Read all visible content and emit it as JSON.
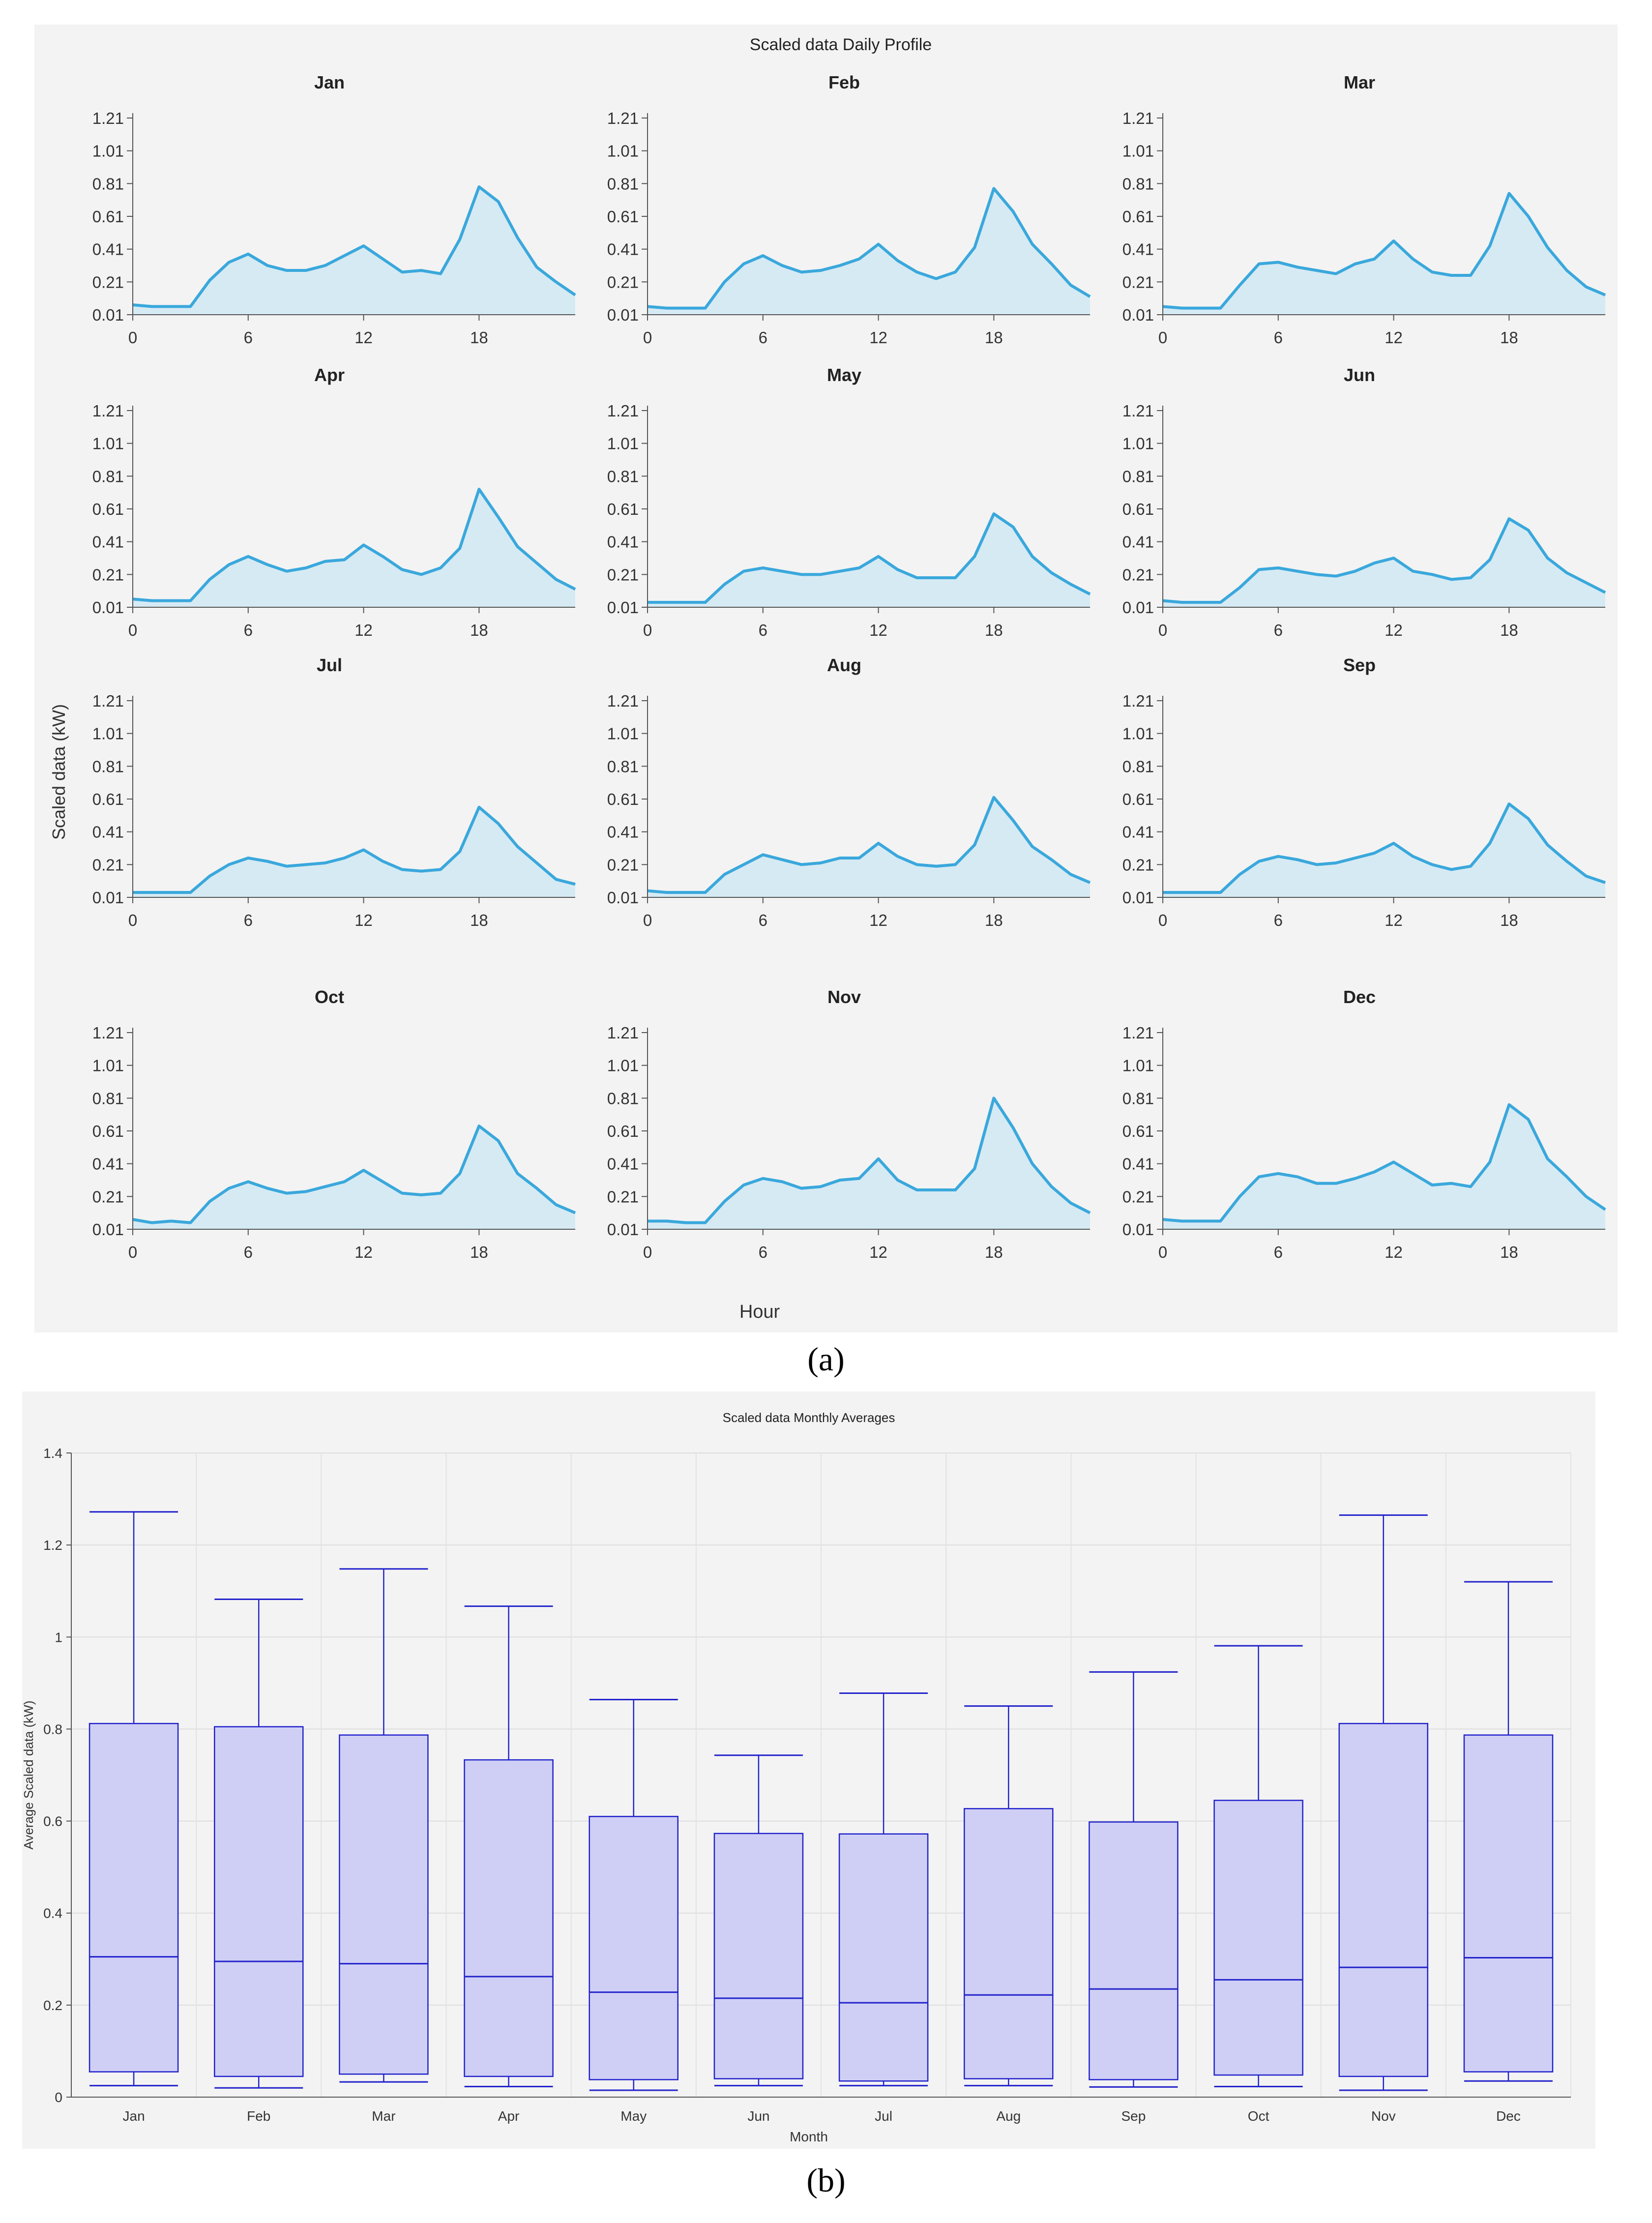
{
  "panel_a_caption": "(a)",
  "panel_b_caption": "(b)",
  "colors": {
    "line": "#3aa8dc",
    "area": "#d6eaf4",
    "box_fill": "#cfcff5",
    "box_stroke": "#2222cc",
    "panel_bg": "#f3f3f3"
  },
  "chart_data": [
    {
      "type": "area",
      "title": "Scaled data Daily Profile",
      "xlabel": "Hour",
      "ylabel": "Scaled data (kW)",
      "x_ticks": [
        "0",
        "6",
        "12",
        "18"
      ],
      "y_ticks": [
        "0.01",
        "0.21",
        "0.41",
        "0.61",
        "0.81",
        "1.01",
        "1.21"
      ],
      "ylim": [
        0.01,
        1.21
      ],
      "xlim": [
        0,
        23
      ],
      "x": [
        0,
        1,
        2,
        3,
        4,
        5,
        6,
        7,
        8,
        9,
        10,
        11,
        12,
        13,
        14,
        15,
        16,
        17,
        18,
        19,
        20,
        21,
        22,
        23
      ],
      "series": [
        {
          "name": "Jan",
          "values": [
            0.07,
            0.06,
            0.06,
            0.06,
            0.22,
            0.33,
            0.38,
            0.31,
            0.28,
            0.28,
            0.31,
            0.37,
            0.43,
            0.35,
            0.27,
            0.28,
            0.26,
            0.47,
            0.79,
            0.7,
            0.48,
            0.3,
            0.21,
            0.13
          ]
        },
        {
          "name": "Feb",
          "values": [
            0.06,
            0.05,
            0.05,
            0.05,
            0.21,
            0.32,
            0.37,
            0.31,
            0.27,
            0.28,
            0.31,
            0.35,
            0.44,
            0.34,
            0.27,
            0.23,
            0.27,
            0.42,
            0.78,
            0.64,
            0.44,
            0.32,
            0.19,
            0.12
          ]
        },
        {
          "name": "Mar",
          "values": [
            0.06,
            0.05,
            0.05,
            0.05,
            0.19,
            0.32,
            0.33,
            0.3,
            0.28,
            0.26,
            0.32,
            0.35,
            0.46,
            0.35,
            0.27,
            0.25,
            0.25,
            0.43,
            0.75,
            0.61,
            0.42,
            0.28,
            0.18,
            0.13
          ]
        },
        {
          "name": "Apr",
          "values": [
            0.06,
            0.05,
            0.05,
            0.05,
            0.18,
            0.27,
            0.32,
            0.27,
            0.23,
            0.25,
            0.29,
            0.3,
            0.39,
            0.32,
            0.24,
            0.21,
            0.25,
            0.37,
            0.73,
            0.56,
            0.38,
            0.28,
            0.18,
            0.12
          ]
        },
        {
          "name": "May",
          "values": [
            0.04,
            0.04,
            0.04,
            0.04,
            0.15,
            0.23,
            0.25,
            0.23,
            0.21,
            0.21,
            0.23,
            0.25,
            0.32,
            0.24,
            0.19,
            0.19,
            0.19,
            0.32,
            0.58,
            0.5,
            0.32,
            0.22,
            0.15,
            0.09
          ]
        },
        {
          "name": "Jun",
          "values": [
            0.05,
            0.04,
            0.04,
            0.04,
            0.13,
            0.24,
            0.25,
            0.23,
            0.21,
            0.2,
            0.23,
            0.28,
            0.31,
            0.23,
            0.21,
            0.18,
            0.19,
            0.3,
            0.55,
            0.48,
            0.31,
            0.22,
            0.16,
            0.1
          ]
        },
        {
          "name": "Jul",
          "values": [
            0.04,
            0.04,
            0.04,
            0.04,
            0.14,
            0.21,
            0.25,
            0.23,
            0.2,
            0.21,
            0.22,
            0.25,
            0.3,
            0.23,
            0.18,
            0.17,
            0.18,
            0.29,
            0.56,
            0.46,
            0.32,
            0.22,
            0.12,
            0.09
          ]
        },
        {
          "name": "Aug",
          "values": [
            0.05,
            0.04,
            0.04,
            0.04,
            0.15,
            0.21,
            0.27,
            0.24,
            0.21,
            0.22,
            0.25,
            0.25,
            0.34,
            0.26,
            0.21,
            0.2,
            0.21,
            0.33,
            0.62,
            0.48,
            0.32,
            0.24,
            0.15,
            0.1
          ]
        },
        {
          "name": "Sep",
          "values": [
            0.04,
            0.04,
            0.04,
            0.04,
            0.15,
            0.23,
            0.26,
            0.24,
            0.21,
            0.22,
            0.25,
            0.28,
            0.34,
            0.26,
            0.21,
            0.18,
            0.2,
            0.34,
            0.58,
            0.49,
            0.33,
            0.23,
            0.14,
            0.1
          ]
        },
        {
          "name": "Oct",
          "values": [
            0.07,
            0.05,
            0.06,
            0.05,
            0.18,
            0.26,
            0.3,
            0.26,
            0.23,
            0.24,
            0.27,
            0.3,
            0.37,
            0.3,
            0.23,
            0.22,
            0.23,
            0.35,
            0.64,
            0.55,
            0.35,
            0.26,
            0.16,
            0.11
          ]
        },
        {
          "name": "Nov",
          "values": [
            0.06,
            0.06,
            0.05,
            0.05,
            0.18,
            0.28,
            0.32,
            0.3,
            0.26,
            0.27,
            0.31,
            0.32,
            0.44,
            0.31,
            0.25,
            0.25,
            0.25,
            0.38,
            0.81,
            0.63,
            0.41,
            0.27,
            0.17,
            0.11
          ]
        },
        {
          "name": "Dec",
          "values": [
            0.07,
            0.06,
            0.06,
            0.06,
            0.21,
            0.33,
            0.35,
            0.33,
            0.29,
            0.29,
            0.32,
            0.36,
            0.42,
            0.35,
            0.28,
            0.29,
            0.27,
            0.42,
            0.77,
            0.68,
            0.44,
            0.33,
            0.21,
            0.13
          ]
        }
      ]
    },
    {
      "type": "box",
      "title": "Scaled data Monthly Averages",
      "xlabel": "Month",
      "ylabel": "Average Scaled data (kW)",
      "ylim": [
        0,
        1.4
      ],
      "y_ticks": [
        "0",
        "0.2",
        "0.4",
        "0.6",
        "0.8",
        "1",
        "1.2",
        "1.4"
      ],
      "categories": [
        "Jan",
        "Feb",
        "Mar",
        "Apr",
        "May",
        "Jun",
        "Jul",
        "Aug",
        "Sep",
        "Oct",
        "Nov",
        "Dec"
      ],
      "boxes": [
        {
          "min": 0.025,
          "q1": 0.055,
          "median": 0.305,
          "q3": 0.812,
          "max": 1.272
        },
        {
          "min": 0.02,
          "q1": 0.045,
          "median": 0.295,
          "q3": 0.805,
          "max": 1.082
        },
        {
          "min": 0.033,
          "q1": 0.05,
          "median": 0.29,
          "q3": 0.787,
          "max": 1.148
        },
        {
          "min": 0.023,
          "q1": 0.045,
          "median": 0.262,
          "q3": 0.733,
          "max": 1.067
        },
        {
          "min": 0.015,
          "q1": 0.038,
          "median": 0.228,
          "q3": 0.61,
          "max": 0.864
        },
        {
          "min": 0.025,
          "q1": 0.04,
          "median": 0.215,
          "q3": 0.573,
          "max": 0.743
        },
        {
          "min": 0.025,
          "q1": 0.035,
          "median": 0.205,
          "q3": 0.572,
          "max": 0.878
        },
        {
          "min": 0.025,
          "q1": 0.04,
          "median": 0.222,
          "q3": 0.627,
          "max": 0.85
        },
        {
          "min": 0.022,
          "q1": 0.038,
          "median": 0.235,
          "q3": 0.598,
          "max": 0.924
        },
        {
          "min": 0.023,
          "q1": 0.048,
          "median": 0.255,
          "q3": 0.645,
          "max": 0.981
        },
        {
          "min": 0.015,
          "q1": 0.045,
          "median": 0.282,
          "q3": 0.812,
          "max": 1.265
        },
        {
          "min": 0.035,
          "q1": 0.055,
          "median": 0.303,
          "q3": 0.787,
          "max": 1.12
        }
      ]
    }
  ]
}
